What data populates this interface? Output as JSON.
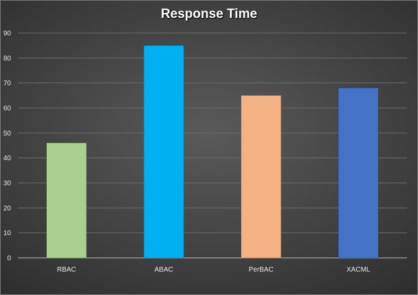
{
  "chart_data": {
    "type": "bar",
    "title": "Response Time",
    "xlabel": "",
    "ylabel": "",
    "categories": [
      "RBAC",
      "ABAC",
      "PerBAC",
      "XACML"
    ],
    "values": [
      46,
      85,
      65,
      68
    ],
    "colors": [
      "#a9d08e",
      "#00b0f0",
      "#f4b183",
      "#4472c4"
    ],
    "ylim": [
      0,
      90
    ],
    "yticks": [
      0,
      10,
      20,
      30,
      40,
      50,
      60,
      70,
      80,
      90
    ],
    "grid": true,
    "legend": "none"
  }
}
